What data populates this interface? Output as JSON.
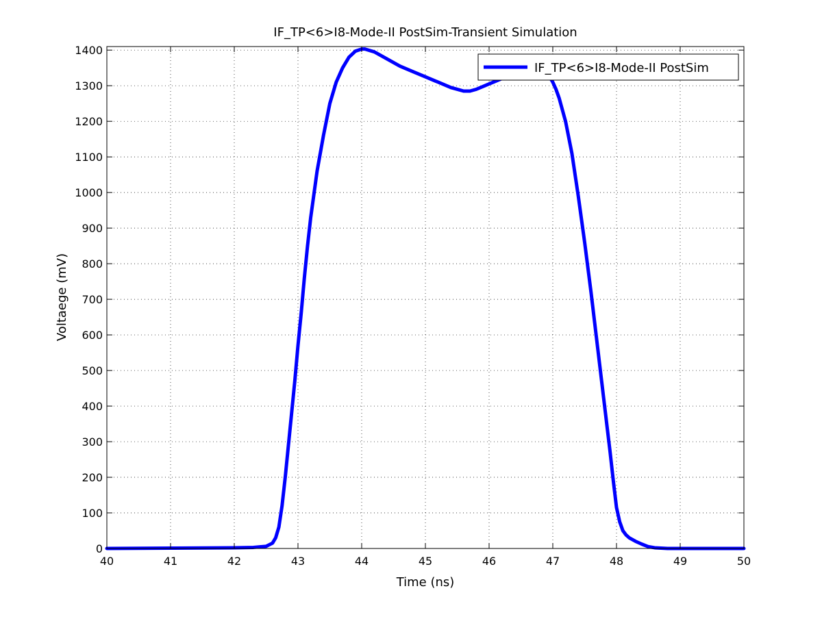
{
  "chart_data": {
    "type": "line",
    "title": "IF_TP<6>I8-Mode-II PostSim-Transient Simulation",
    "xlabel": "Time (ns)",
    "ylabel": "Voltaege (mV)",
    "xlim": [
      40,
      50
    ],
    "ylim": [
      0,
      1410
    ],
    "xticks": [
      40,
      41,
      42,
      43,
      44,
      45,
      46,
      47,
      48,
      49,
      50
    ],
    "yticks": [
      0,
      100,
      200,
      300,
      400,
      500,
      600,
      700,
      800,
      900,
      1000,
      1100,
      1200,
      1300,
      1400
    ],
    "grid": true,
    "legend_position": "top-right",
    "series": [
      {
        "name": "IF_TP<6>I8-Mode-II PostSim",
        "color": "#0000ff",
        "x": [
          40.0,
          41.0,
          42.0,
          42.3,
          42.5,
          42.6,
          42.65,
          42.7,
          42.75,
          42.8,
          42.85,
          42.9,
          42.95,
          43.0,
          43.05,
          43.1,
          43.15,
          43.2,
          43.3,
          43.4,
          43.5,
          43.6,
          43.7,
          43.8,
          43.9,
          44.0,
          44.05,
          44.2,
          44.4,
          44.6,
          44.8,
          45.0,
          45.2,
          45.4,
          45.6,
          45.7,
          45.8,
          46.0,
          46.2,
          46.4,
          46.6,
          46.8,
          46.9,
          46.95,
          47.0,
          47.05,
          47.1,
          47.2,
          47.3,
          47.4,
          47.5,
          47.6,
          47.7,
          47.8,
          47.9,
          47.95,
          48.0,
          48.05,
          48.1,
          48.15,
          48.2,
          48.3,
          48.4,
          48.5,
          48.6,
          48.7,
          48.8,
          48.9,
          49.0,
          50.0
        ],
        "y": [
          0,
          1,
          2,
          3,
          6,
          15,
          30,
          60,
          120,
          200,
          290,
          380,
          470,
          570,
          660,
          760,
          850,
          930,
          1060,
          1160,
          1250,
          1310,
          1350,
          1380,
          1397,
          1403,
          1403,
          1395,
          1375,
          1355,
          1340,
          1325,
          1310,
          1295,
          1285,
          1285,
          1290,
          1305,
          1320,
          1333,
          1338,
          1338,
          1334,
          1325,
          1310,
          1290,
          1265,
          1200,
          1110,
          990,
          860,
          720,
          570,
          420,
          270,
          190,
          115,
          75,
          50,
          38,
          30,
          20,
          12,
          5,
          2,
          1,
          0,
          0,
          0,
          0
        ]
      }
    ]
  }
}
